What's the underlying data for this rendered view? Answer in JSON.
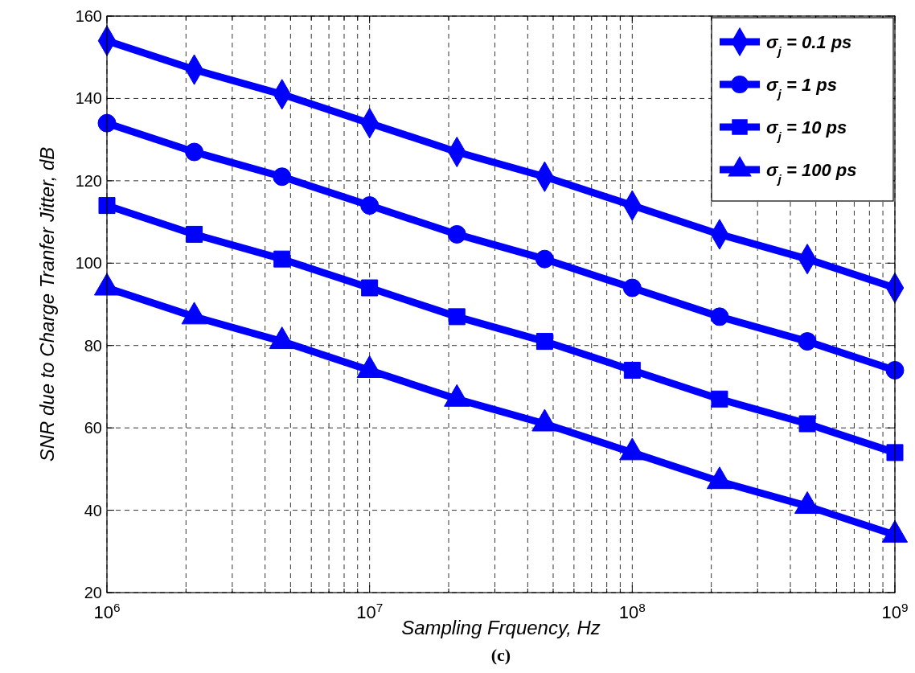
{
  "chart_data": {
    "type": "line",
    "xlabel": "Sampling Frquency, Hz",
    "ylabel": "SNR due to Charge Tranfer Jitter, dB",
    "annotations": [
      "(c)"
    ],
    "x": [
      1000000,
      2150000,
      4640000,
      10000000,
      21500000,
      46400000,
      100000000,
      215000000,
      464000000,
      1000000000
    ],
    "series": [
      {
        "name": "σ$_{j}$ = 0.1 ps",
        "color": "#0000ff",
        "marker": "diamond",
        "values": [
          154,
          147,
          141,
          134,
          127,
          121,
          114,
          107,
          101,
          94
        ]
      },
      {
        "name": "σ$_{j}$ = 1 ps",
        "color": "#0000ff",
        "marker": "circle",
        "values": [
          134,
          127,
          121,
          114,
          107,
          101,
          94,
          87,
          81,
          74
        ]
      },
      {
        "name": "σ$_{j}$ = 10 ps",
        "color": "#0000ff",
        "marker": "square",
        "values": [
          114,
          107,
          101,
          94,
          87,
          81,
          74,
          67,
          61,
          54
        ]
      },
      {
        "name": "σ$_{j}$ = 100 ps",
        "color": "#0000ff",
        "marker": "triangle",
        "values": [
          94,
          87,
          81,
          74,
          67,
          61,
          54,
          47,
          41,
          34
        ]
      }
    ],
    "log": "x",
    "xlim": [
      1000000,
      1000000000
    ],
    "ylim": [
      20,
      160
    ],
    "xticks": [
      {
        "value": 1000000,
        "label": "10$^{6}$"
      },
      {
        "value": 2000000,
        "label": null
      },
      {
        "value": 3000000,
        "label": null
      },
      {
        "value": 4000000,
        "label": null
      },
      {
        "value": 5000000,
        "label": null
      },
      {
        "value": 6000000,
        "label": null
      },
      {
        "value": 7000000,
        "label": null
      },
      {
        "value": 8000000,
        "label": null
      },
      {
        "value": 9000000,
        "label": null
      },
      {
        "value": 10000000,
        "label": "10$^{7}$"
      },
      {
        "value": 20000000,
        "label": null
      },
      {
        "value": 30000000,
        "label": null
      },
      {
        "value": 40000000,
        "label": null
      },
      {
        "value": 50000000,
        "label": null
      },
      {
        "value": 60000000,
        "label": null
      },
      {
        "value": 70000000,
        "label": null
      },
      {
        "value": 80000000,
        "label": null
      },
      {
        "value": 90000000,
        "label": null
      },
      {
        "value": 100000000,
        "label": "10$^{8}$"
      },
      {
        "value": 200000000,
        "label": null
      },
      {
        "value": 300000000,
        "label": null
      },
      {
        "value": 400000000,
        "label": null
      },
      {
        "value": 500000000,
        "label": null
      },
      {
        "value": 600000000,
        "label": null
      },
      {
        "value": 700000000,
        "label": null
      },
      {
        "value": 800000000,
        "label": null
      },
      {
        "value": 900000000,
        "label": null
      },
      {
        "value": 1000000000,
        "label": "10$^{9}$"
      }
    ],
    "yticks": [
      20,
      40,
      60,
      80,
      100,
      120,
      140,
      160
    ],
    "grid": true,
    "legend": "top right",
    "line_style": "solid"
  }
}
